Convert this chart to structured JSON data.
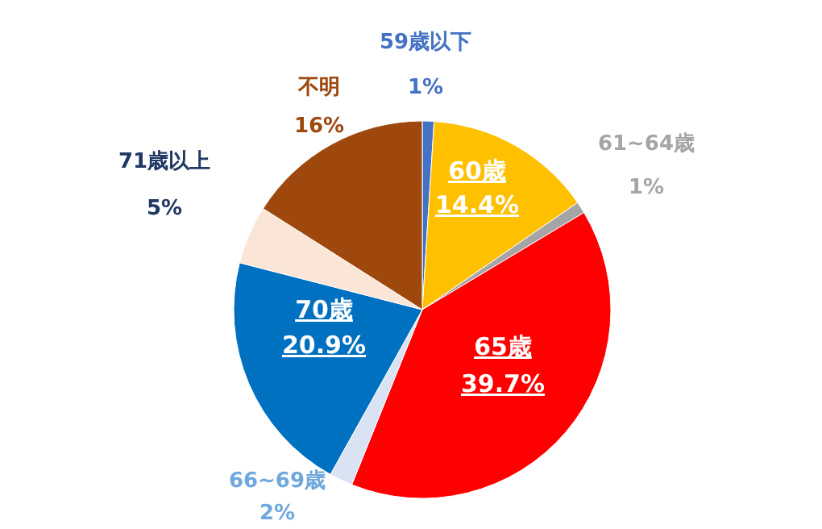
{
  "chart_data": {
    "type": "pie",
    "categories": [
      "59歳以下",
      "60歳",
      "61~64歳",
      "65歳",
      "66~69歳",
      "70歳",
      "71歳以上",
      "不明"
    ],
    "values": [
      1,
      14.4,
      1,
      39.7,
      2,
      20.9,
      5,
      16
    ],
    "value_labels": [
      "1%",
      "14.4%",
      "1%",
      "39.7%",
      "2%",
      "20.9%",
      "5%",
      "16%"
    ],
    "colors": [
      "#4472c4",
      "#ffc000",
      "#a5a5a5",
      "#ff0000",
      "#dae3f3",
      "#0070c0",
      "#fbe5d6",
      "#9e480e"
    ],
    "legend": false
  }
}
